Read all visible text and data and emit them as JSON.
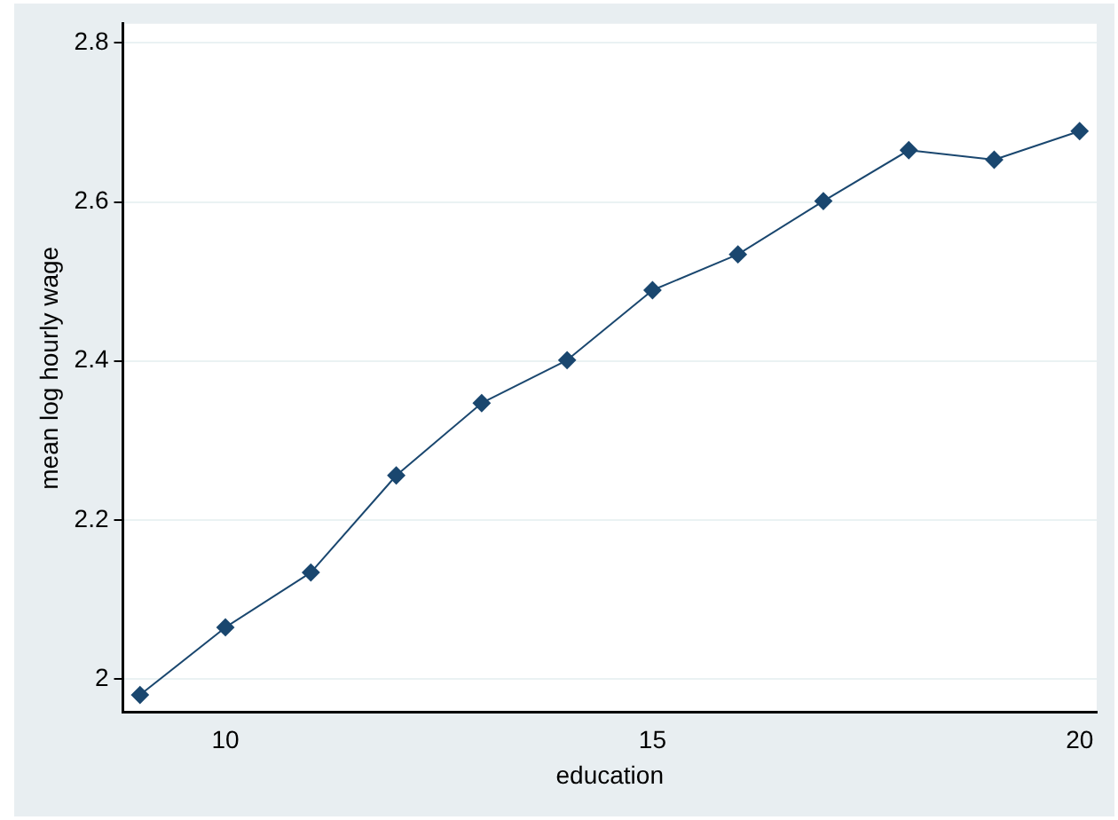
{
  "chart_data": {
    "type": "line",
    "xlabel": "education",
    "ylabel": "mean log hourly wage",
    "x": [
      9,
      10,
      11,
      12,
      13,
      14,
      15,
      16,
      17,
      18,
      19,
      20
    ],
    "series": [
      {
        "color": "#1a476f",
        "values": [
          1.98,
          2.065,
          2.134,
          2.256,
          2.347,
          2.401,
          2.489,
          2.534,
          2.601,
          2.665,
          2.653,
          2.689
        ]
      }
    ],
    "xlim": [
      8.8,
      20.2
    ],
    "xticks": [
      10,
      15,
      20
    ],
    "ylim": [
      1.958,
      2.824
    ],
    "yticks": [
      2,
      2.2,
      2.4,
      2.6,
      2.8
    ],
    "grid": "y",
    "legend": false,
    "marker": "diamond",
    "line_style": "solid"
  }
}
